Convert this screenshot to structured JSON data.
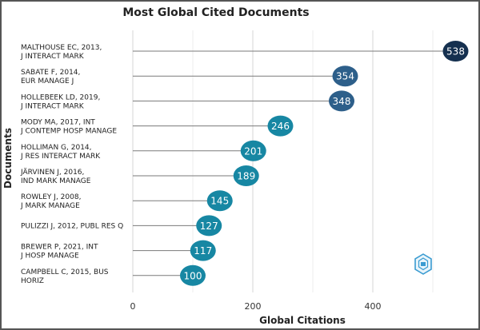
{
  "chart_data": {
    "type": "lollipop",
    "title": "Most Global Cited Documents",
    "xlabel": "Global Citations",
    "ylabel": "Documents",
    "xlim": [
      0,
      560
    ],
    "xticks": [
      0,
      200,
      400
    ],
    "grid": true,
    "categories": [
      [
        "MALTHOUSE EC, 2013,",
        "J INTERACT MARK"
      ],
      [
        "SABATE F, 2014,",
        "EUR MANAGE J"
      ],
      [
        "HOLLEBEEK LD, 2019,",
        "J INTERACT MARK"
      ],
      [
        "MODY MA, 2017, INT",
        "J CONTEMP HOSP MANAGE"
      ],
      [
        "HOLLIMAN G, 2014,",
        "J RES INTERACT MARK"
      ],
      [
        "JÄRVINEN J, 2016,",
        "IND MARK MANAGE"
      ],
      [
        "ROWLEY J, 2008,",
        "J MARK MANAGE"
      ],
      [
        "PULIZZI J, 2012, PUBL RES Q"
      ],
      [
        "BREWER P, 2021, INT",
        "J HOSP MANAGE"
      ],
      [
        "CAMPBELL C, 2015, BUS",
        "HORIZ"
      ]
    ],
    "values": [
      538,
      354,
      348,
      246,
      201,
      189,
      145,
      127,
      117,
      100
    ],
    "colors": [
      "#15304f",
      "#2d5f8a",
      "#2d5f8a",
      "#1787a3",
      "#1787a3",
      "#1787a3",
      "#1787a3",
      "#1787a3",
      "#1787a3",
      "#1787a3"
    ]
  }
}
